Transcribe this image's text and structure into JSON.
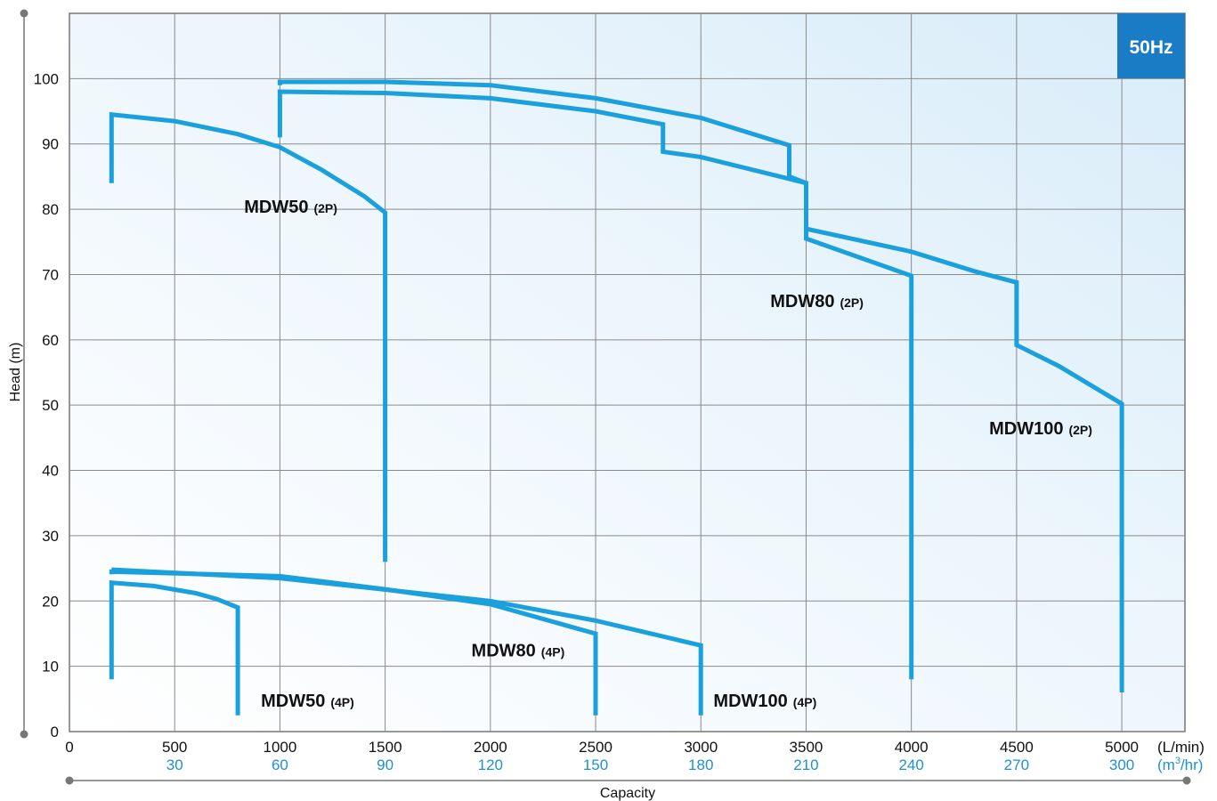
{
  "chart_data": {
    "type": "line",
    "badge": "50Hz",
    "xlabel": "Capacity",
    "ylabel": "Head (m)",
    "x_unit": "(L/min)",
    "x2_unit_base": "(m",
    "x2_unit_sup": "3",
    "x2_unit_tail": "/hr)",
    "xlim": [
      0,
      5300
    ],
    "ylim": [
      0,
      110
    ],
    "x_ticks": [
      0,
      500,
      1000,
      1500,
      2000,
      2500,
      3000,
      3500,
      4000,
      4500,
      5000
    ],
    "x_tick_labels": [
      "0",
      "500",
      "1000",
      "1500",
      "2000",
      "2500",
      "3000",
      "3500",
      "4000",
      "4500",
      "5000"
    ],
    "x2_tick_labels": [
      "30",
      "60",
      "90",
      "120",
      "150",
      "180",
      "210",
      "240",
      "270",
      "300"
    ],
    "y_ticks": [
      0,
      10,
      20,
      30,
      40,
      50,
      60,
      70,
      80,
      90,
      100
    ],
    "y_tick_labels": [
      "0",
      "10",
      "20",
      "30",
      "40",
      "50",
      "60",
      "70",
      "80",
      "90",
      "100"
    ],
    "grid": true,
    "series": [
      {
        "name": "MDW50",
        "sub": "(2P)",
        "label_at": [
          830,
          79.5
        ],
        "points": [
          [
            200,
            84
          ],
          [
            200,
            94.5
          ],
          [
            500,
            93.5
          ],
          [
            800,
            91.5
          ],
          [
            1000,
            89.5
          ],
          [
            1200,
            86
          ],
          [
            1400,
            82
          ],
          [
            1500,
            79.5
          ],
          [
            1500,
            26
          ]
        ]
      },
      {
        "name": "MDW80",
        "sub": "(2P)",
        "label_at": [
          3330,
          65
        ],
        "points": [
          [
            1000,
            91
          ],
          [
            1000,
            98
          ],
          [
            1500,
            97.8
          ],
          [
            2000,
            97
          ],
          [
            2500,
            95
          ],
          [
            2820,
            93
          ],
          [
            2820,
            88.8
          ],
          [
            3000,
            88
          ],
          [
            3500,
            84
          ],
          [
            3500,
            75.5
          ],
          [
            4000,
            69.8
          ],
          [
            4000,
            8
          ]
        ]
      },
      {
        "name": "MDW100",
        "sub": "(2P)",
        "label_at": [
          4370,
          45.5
        ],
        "points": [
          [
            1000,
            99
          ],
          [
            1000,
            99.5
          ],
          [
            1500,
            99.5
          ],
          [
            2000,
            99
          ],
          [
            2500,
            97
          ],
          [
            3000,
            94
          ],
          [
            3420,
            89.8
          ],
          [
            3420,
            85
          ],
          [
            3500,
            84
          ],
          [
            3500,
            77
          ],
          [
            4000,
            73.5
          ],
          [
            4300,
            70.5
          ],
          [
            4500,
            68.8
          ],
          [
            4500,
            59.2
          ],
          [
            4700,
            56
          ],
          [
            5000,
            50.2
          ],
          [
            5000,
            6
          ]
        ]
      },
      {
        "name": "MDW50",
        "sub": "(4P)",
        "label_at": [
          910,
          3.8
        ],
        "points": [
          [
            200,
            8
          ],
          [
            200,
            22.8
          ],
          [
            400,
            22.3
          ],
          [
            600,
            21.2
          ],
          [
            700,
            20.3
          ],
          [
            800,
            19
          ],
          [
            800,
            2.5
          ]
        ]
      },
      {
        "name": "MDW80",
        "sub": "(4P)",
        "label_at": [
          1910,
          11.5
        ],
        "points": [
          [
            200,
            24.1
          ],
          [
            200,
            24.5
          ],
          [
            1000,
            23.8
          ],
          [
            1500,
            21.8
          ],
          [
            2000,
            19.5
          ],
          [
            2500,
            15
          ],
          [
            2500,
            2.5
          ]
        ]
      },
      {
        "name": "MDW100",
        "sub": "(4P)",
        "label_at": [
          3060,
          3.8
        ],
        "points": [
          [
            200,
            24.8
          ],
          [
            1000,
            23.5
          ],
          [
            2000,
            20
          ],
          [
            2500,
            17
          ],
          [
            3000,
            13.2
          ],
          [
            3000,
            2.5
          ]
        ]
      }
    ]
  }
}
